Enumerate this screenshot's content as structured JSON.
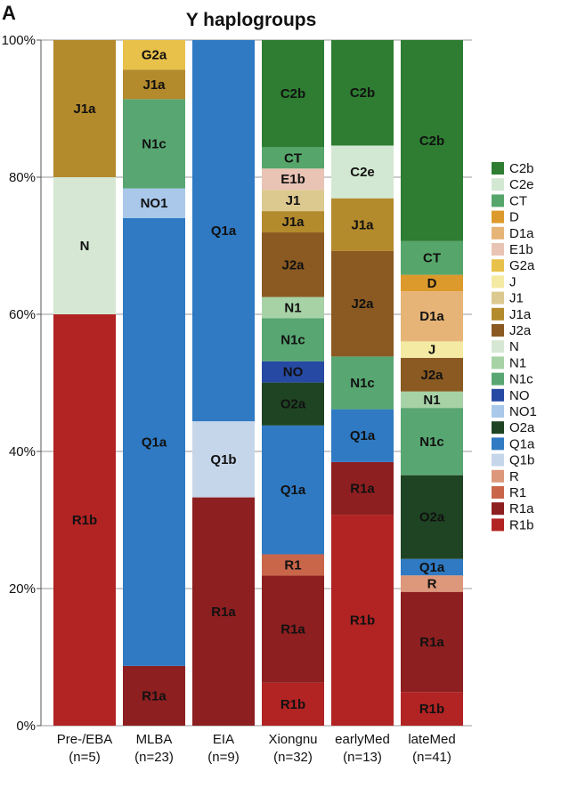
{
  "panel_label": "A",
  "chart_data": {
    "type": "bar",
    "stacked": true,
    "title": "Y haplogroups",
    "xlabel": "",
    "ylabel": "",
    "ylim": [
      0,
      100
    ],
    "yticks": [
      "0%",
      "20%",
      "40%",
      "60%",
      "80%",
      "100%"
    ],
    "grid": "horizontal",
    "legend_placement": "right",
    "categories": [
      {
        "name": "Pre-/EBA",
        "n": "(n=5)"
      },
      {
        "name": "MLBA",
        "n": "(n=23)"
      },
      {
        "name": "EIA",
        "n": "(n=9)"
      },
      {
        "name": "Xiongnu",
        "n": "(n=32)"
      },
      {
        "name": "earlyMed",
        "n": "(n=13)"
      },
      {
        "name": "lateMed",
        "n": "(n=41)"
      }
    ],
    "legend": [
      {
        "name": "C2b",
        "color": "#2e7d32"
      },
      {
        "name": "C2e",
        "color": "#d2e8d2"
      },
      {
        "name": "CT",
        "color": "#56a66b"
      },
      {
        "name": "D",
        "color": "#dc9a2c"
      },
      {
        "name": "D1a",
        "color": "#e6b477"
      },
      {
        "name": "E1b",
        "color": "#e9c3b4"
      },
      {
        "name": "G2a",
        "color": "#e8c14a"
      },
      {
        "name": "J",
        "color": "#f4eaa3"
      },
      {
        "name": "J1",
        "color": "#dcc98f"
      },
      {
        "name": "J1a",
        "color": "#b38a2c"
      },
      {
        "name": "J2a",
        "color": "#8a5a22"
      },
      {
        "name": "N",
        "color": "#d6e8d4"
      },
      {
        "name": "N1",
        "color": "#a6d2a6"
      },
      {
        "name": "N1c",
        "color": "#58a672"
      },
      {
        "name": "NO",
        "color": "#2649a3"
      },
      {
        "name": "NO1",
        "color": "#a9c8ea"
      },
      {
        "name": "O2a",
        "color": "#1f4423"
      },
      {
        "name": "Q1a",
        "color": "#2f7ac3"
      },
      {
        "name": "Q1b",
        "color": "#c6d6ea"
      },
      {
        "name": "R",
        "color": "#dd977a"
      },
      {
        "name": "R1",
        "color": "#c9664a"
      },
      {
        "name": "R1a",
        "color": "#8d1f20"
      },
      {
        "name": "R1b",
        "color": "#b22323"
      }
    ],
    "bars": [
      {
        "segments": [
          {
            "name": "R1b",
            "value": 60,
            "label": "R1b"
          },
          {
            "name": "N",
            "value": 20,
            "label": "N"
          },
          {
            "name": "J1a",
            "value": 20,
            "label": "J1a"
          }
        ]
      },
      {
        "segments": [
          {
            "name": "R1a",
            "value": 8.7,
            "label": "R1a"
          },
          {
            "name": "Q1a",
            "value": 65.2,
            "label": "Q1a"
          },
          {
            "name": "NO1",
            "value": 4.3,
            "label": "NO1"
          },
          {
            "name": "N1c",
            "value": 13.0,
            "label": "N1c"
          },
          {
            "name": "J1a",
            "value": 4.3,
            "label": "J1a"
          },
          {
            "name": "G2a",
            "value": 4.3,
            "label": "G2a"
          }
        ]
      },
      {
        "segments": [
          {
            "name": "R1a",
            "value": 33.3,
            "label": "R1a"
          },
          {
            "name": "Q1b",
            "value": 11.1,
            "label": "Q1b"
          },
          {
            "name": "Q1a",
            "value": 55.6,
            "label": "Q1a"
          }
        ]
      },
      {
        "segments": [
          {
            "name": "R1b",
            "value": 6.25,
            "label": "R1b"
          },
          {
            "name": "R1a",
            "value": 15.6,
            "label": "R1a"
          },
          {
            "name": "R1",
            "value": 3.1,
            "label": "R1"
          },
          {
            "name": "Q1a",
            "value": 18.75,
            "label": "Q1a"
          },
          {
            "name": "O2a",
            "value": 6.25,
            "label": "O2a"
          },
          {
            "name": "NO",
            "value": 3.1,
            "label": "NO"
          },
          {
            "name": "N1c",
            "value": 6.25,
            "label": "N1c"
          },
          {
            "name": "N1",
            "value": 3.1,
            "label": "N1"
          },
          {
            "name": "J2a",
            "value": 9.4,
            "label": "J2a"
          },
          {
            "name": "J1a",
            "value": 3.1,
            "label": "J1a"
          },
          {
            "name": "J1",
            "value": 3.1,
            "label": "J1"
          },
          {
            "name": "E1b",
            "value": 3.1,
            "label": "E1b"
          },
          {
            "name": "CT",
            "value": 3.1,
            "label": "CT"
          },
          {
            "name": "C2b",
            "value": 15.6,
            "label": "C2b"
          }
        ]
      },
      {
        "segments": [
          {
            "name": "R1b",
            "value": 30.8,
            "label": "R1b"
          },
          {
            "name": "R1a",
            "value": 7.7,
            "label": "R1a"
          },
          {
            "name": "Q1a",
            "value": 7.7,
            "label": "Q1a"
          },
          {
            "name": "N1c",
            "value": 7.7,
            "label": "N1c"
          },
          {
            "name": "J2a",
            "value": 15.4,
            "label": "J2a"
          },
          {
            "name": "J1a",
            "value": 7.7,
            "label": "J1a"
          },
          {
            "name": "C2e",
            "value": 7.7,
            "label": "C2e"
          },
          {
            "name": "C2b",
            "value": 15.4,
            "label": "C2b"
          }
        ]
      },
      {
        "segments": [
          {
            "name": "R1b",
            "value": 4.9,
            "label": "R1b"
          },
          {
            "name": "R1a",
            "value": 14.6,
            "label": "R1a"
          },
          {
            "name": "R",
            "value": 2.4,
            "label": "R"
          },
          {
            "name": "Q1a",
            "value": 2.4,
            "label": "Q1a"
          },
          {
            "name": "O2a",
            "value": 12.2,
            "label": "O2a"
          },
          {
            "name": "N1c",
            "value": 9.8,
            "label": "N1c"
          },
          {
            "name": "N1",
            "value": 2.4,
            "label": "N1"
          },
          {
            "name": "J2a",
            "value": 4.9,
            "label": "J2a"
          },
          {
            "name": "J",
            "value": 2.4,
            "label": "J"
          },
          {
            "name": "D1a",
            "value": 7.3,
            "label": "D1a"
          },
          {
            "name": "D",
            "value": 2.4,
            "label": "D"
          },
          {
            "name": "CT",
            "value": 4.9,
            "label": "CT"
          },
          {
            "name": "C2b",
            "value": 29.3,
            "label": "C2b"
          }
        ]
      }
    ]
  }
}
